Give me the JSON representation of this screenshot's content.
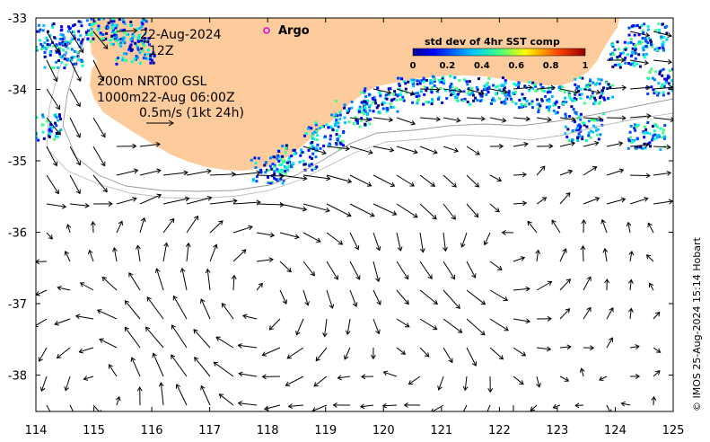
{
  "map": {
    "date": "22-Aug-2024",
    "time": "12Z",
    "depth_label": "200m  NRT00 GSL",
    "depth_label2": "1000m22-Aug 06:00Z",
    "scale_label": "0.5m/s (1kt 24h)",
    "argo_label": "Argo",
    "credit": "© IMOS 25-Aug-2024 15:14 Hobart",
    "colors": {
      "land": "#fdcb9c",
      "sea": "#ffffff",
      "argo_marker": "#e000e0"
    },
    "x_ticks": [
      "114",
      "115",
      "116",
      "117",
      "118",
      "119",
      "120",
      "121",
      "122",
      "123",
      "124",
      "125"
    ],
    "y_ticks": [
      "-33",
      "-34",
      "-35",
      "-36",
      "-37",
      "-38"
    ],
    "colorbar": {
      "title": "std dev of 4hr SST comp",
      "ticks": [
        "0",
        "0.2",
        "0.4",
        "0.6",
        "0.8",
        "1"
      ],
      "range": [
        0,
        1
      ]
    }
  }
}
